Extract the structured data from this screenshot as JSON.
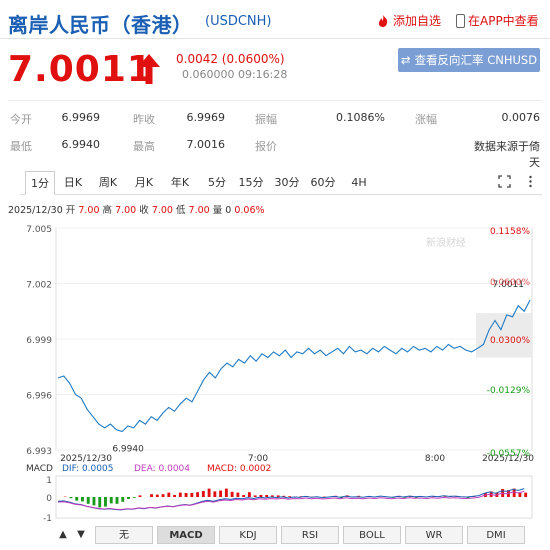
{
  "header": {
    "title": "离岸人民币（香港）",
    "code": "(USDCNH)",
    "watch_label": "添加自选",
    "app_label": "在APP中查看"
  },
  "quote": {
    "price": "7.0011",
    "change": "0.0042 (0.0600%)",
    "timestamp": "0.060000 09:16:28",
    "reverse_label": "查看反向汇率 CNHUSD",
    "rows": [
      [
        {
          "label": "今开",
          "value": "6.9969"
        },
        {
          "label": "昨收",
          "value": "6.9969"
        },
        {
          "label": "振幅",
          "value": "0.1086%"
        },
        {
          "label": "涨幅",
          "value": "0.0076"
        }
      ],
      [
        {
          "label": "最低",
          "value": "6.9940"
        },
        {
          "label": "最高",
          "value": "7.0016"
        },
        {
          "label": "报价",
          "value": ""
        },
        {
          "label": "",
          "value": "数据来源于倚天"
        }
      ]
    ]
  },
  "tabs": [
    "1分",
    "日K",
    "周K",
    "月K",
    "年K",
    "5分",
    "15分",
    "30分",
    "60分",
    "4H"
  ],
  "active_tab": 0,
  "info_bar": {
    "date": "2025/12/30",
    "open_label": "开",
    "open": "7.00",
    "high_label": "高",
    "high": "7.00",
    "close_label": "收",
    "close": "7.00",
    "low_label": "低",
    "low": "7.00",
    "vol_label": "量",
    "vol": "0",
    "pct": "0.06%"
  },
  "watermark": "新浪财经",
  "colors": {
    "up": "#e01010",
    "down": "#1a9a1a",
    "line": "#1f7ac4",
    "accent": "#1a5fb4"
  },
  "chart_data": {
    "type": "line",
    "title": "",
    "y_ticks": [
      "7.005",
      "7.002",
      "6.999",
      "6.996",
      "6.993"
    ],
    "ylim": [
      6.993,
      7.005
    ],
    "pct_ticks": [
      {
        "label": "0.1158%",
        "color": "up"
      },
      {
        "label": "0.0300%",
        "color": "up"
      },
      {
        "label": "-0.0129%",
        "color": "down"
      },
      {
        "label": "-0.0557%",
        "color": "down"
      }
    ],
    "x_ticks": [
      "2025/12/30",
      "7:00",
      "8:00",
      "2025/12/30"
    ],
    "annotations": {
      "min_label": "6.9940",
      "last_label": "7.0011",
      "last_pct": "0.0600%"
    },
    "series": [
      {
        "values": [
          6.9969,
          6.997,
          6.9966,
          6.996,
          6.9958,
          6.9952,
          6.9948,
          6.9944,
          6.9942,
          6.9944,
          6.9941,
          6.994,
          6.9943,
          6.9942,
          6.9946,
          6.9944,
          6.9948,
          6.9946,
          6.995,
          6.9953,
          6.9951,
          6.9955,
          6.9958,
          6.9956,
          6.9962,
          6.9968,
          6.9972,
          6.9969,
          6.9974,
          6.9977,
          6.9975,
          6.9979,
          6.9977,
          6.9981,
          6.9978,
          6.9982,
          6.998,
          6.9983,
          6.9981,
          6.9984,
          6.998,
          6.9983,
          6.9982,
          6.9985,
          6.9982,
          6.9984,
          6.9981,
          6.9983,
          6.9985,
          6.9982,
          6.9986,
          6.9983,
          6.9984,
          6.9982,
          6.9985,
          6.9983,
          6.9986,
          6.9984,
          6.9982,
          6.9985,
          6.9983,
          6.9986,
          6.9984,
          6.9985,
          6.9983,
          6.9986,
          6.9984,
          6.9987,
          6.9985,
          6.9986,
          6.9984,
          6.9983,
          6.9985,
          6.9987,
          6.9995,
          7.0,
          6.9995,
          7.0003,
          7.0002,
          7.0008,
          7.0005,
          7.0011
        ]
      }
    ],
    "macd": {
      "label": "MACD",
      "dif_label": "DIF: 0.0005",
      "dea_label": "DEA: 0.0004",
      "macd_label": "MACD: 0.0002",
      "y_ticks": [
        "1",
        "0",
        "-1"
      ]
    }
  },
  "sub_tabs": [
    "无",
    "MACD",
    "KDJ",
    "RSI",
    "BOLL",
    "WR",
    "DMI"
  ],
  "active_sub_tab": 1
}
